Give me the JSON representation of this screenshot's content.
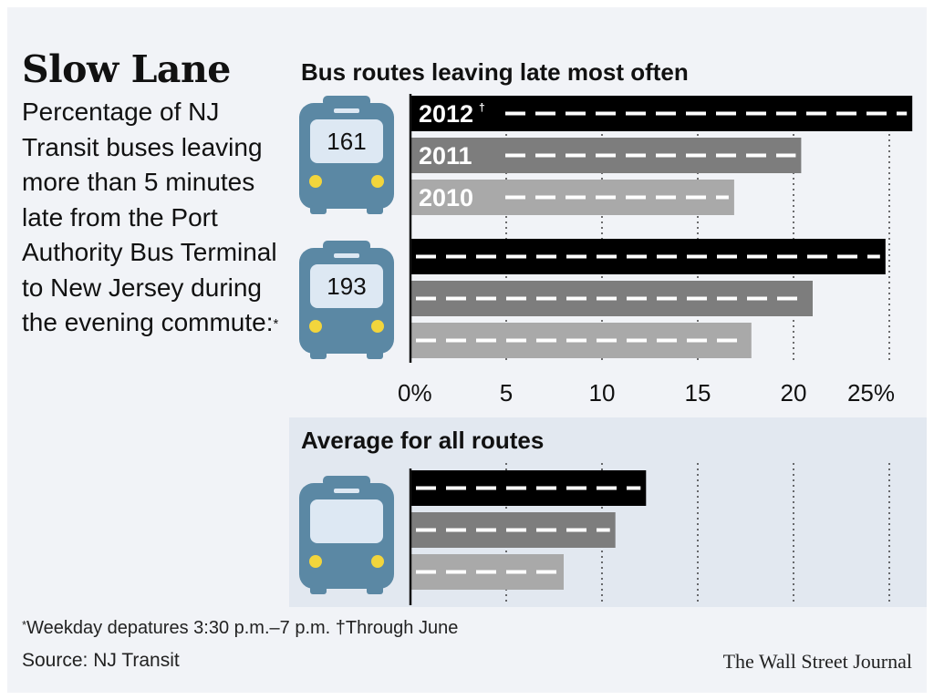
{
  "header": {
    "title": "Slow Lane",
    "subtitle": "Percentage of NJ Transit buses leaving more than 5 minutes late from the Port Authority Bus Terminal to New Jersey during the evening commute:",
    "subtitle_footnote_mark": "*"
  },
  "routes_section_title": "Bus routes leaving late most often",
  "average_section_title": "Average for all routes",
  "footnote": {
    "mark1": "*",
    "text1": "Weekday depatures 3:30 p.m.–7 p.m.",
    "mark2": "†",
    "text2": "Through June"
  },
  "source": "Source: NJ Transit",
  "credit": "The Wall Street Journal",
  "colors": {
    "bar_2012": "#000000",
    "bar_2011": "#7d7d7d",
    "bar_2010": "#a9a9a9",
    "bus": "#5b88a4",
    "bus_window": "#dde8f3",
    "headlight": "#f2d53c",
    "dash": "#ffffff"
  },
  "chart_data": {
    "type": "bar",
    "orientation": "horizontal",
    "xlim": [
      0,
      26
    ],
    "ticks": [
      {
        "value": 0,
        "label": "0%"
      },
      {
        "value": 5,
        "label": "5"
      },
      {
        "value": 10,
        "label": "10"
      },
      {
        "value": 15,
        "label": "15"
      },
      {
        "value": 20,
        "label": "20"
      },
      {
        "value": 25,
        "label": "25%"
      }
    ],
    "grid": "dotted vertical",
    "year_labels": [
      {
        "label": "2012",
        "mark": "†"
      },
      {
        "label": "2011",
        "mark": ""
      },
      {
        "label": "2010",
        "mark": ""
      }
    ],
    "groups": [
      {
        "route": "161",
        "values": [
          26.2,
          20.4,
          16.9
        ]
      },
      {
        "route": "193",
        "values": [
          24.8,
          21.0,
          17.8
        ]
      },
      {
        "route": "",
        "values": [
          12.3,
          10.7,
          8.0
        ]
      }
    ]
  }
}
